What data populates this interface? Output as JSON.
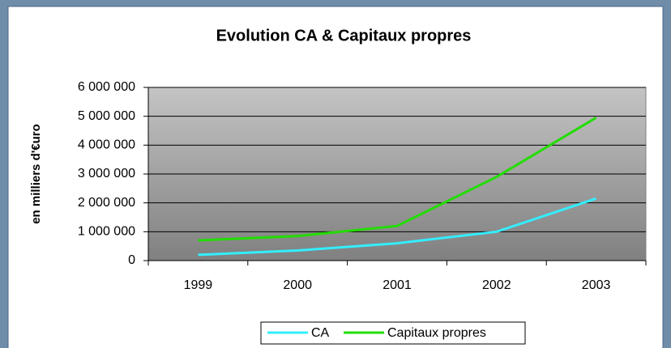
{
  "chart_data": {
    "type": "line",
    "title": "Evolution CA & Capitaux propres",
    "y_label": "en milliers d'€uro",
    "categories": [
      "1999",
      "2000",
      "2001",
      "2002",
      "2003"
    ],
    "series": [
      {
        "name": "CA",
        "color": "#33eeff",
        "values": [
          200000,
          350000,
          600000,
          1000000,
          2150000
        ]
      },
      {
        "name": "Capitaux propres",
        "color": "#22dd00",
        "values": [
          700000,
          850000,
          1200000,
          2900000,
          4950000
        ]
      }
    ],
    "ylim": [
      0,
      6000000
    ],
    "yticks": [
      0,
      {
        "value": 1000000,
        "label": "1 000 000"
      },
      {
        "value": 2000000,
        "label": "2 000 000"
      },
      {
        "value": 3000000,
        "label": "3 000 000"
      },
      {
        "value": 4000000,
        "label": "4 000 000"
      },
      {
        "value": 5000000,
        "label": "5 000 000"
      },
      {
        "value": 6000000,
        "label": "6 000 000"
      }
    ],
    "grid": true,
    "legend": "bottom"
  }
}
